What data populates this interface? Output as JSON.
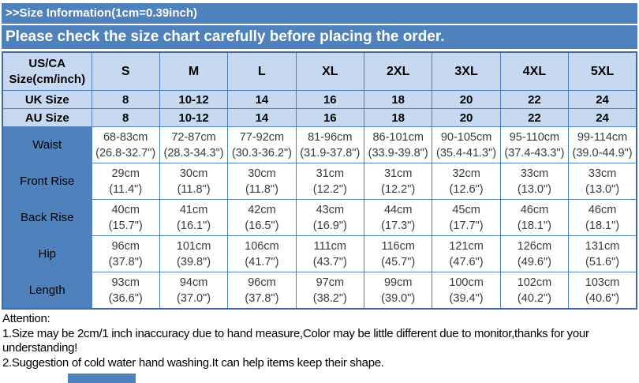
{
  "header": {
    "title": ">>Size Information(1cm=0.39inch)",
    "notice": "Please check the size chart carefully before placing the order."
  },
  "colors": {
    "banner_blue": "#4f81bd",
    "header_light_blue": "#c6d9f1",
    "border_blue": "#4f81bd",
    "cell_text": "#3a3a3a"
  },
  "table": {
    "corner": {
      "line1": "US/CA",
      "line2": "Size(cm/inch)"
    },
    "sizes": [
      "S",
      "M",
      "L",
      "XL",
      "2XL",
      "3XL",
      "4XL",
      "5XL"
    ],
    "size_rows": [
      {
        "label": "UK Size",
        "values": [
          "8",
          "10-12",
          "14",
          "16",
          "18",
          "20",
          "22",
          "24"
        ]
      },
      {
        "label": "AU Size",
        "values": [
          "8",
          "10-12",
          "14",
          "16",
          "18",
          "20",
          "22",
          "24"
        ]
      }
    ],
    "measure_rows": [
      {
        "label": "Waist",
        "cm": [
          "68-83cm",
          "72-87cm",
          "77-92cm",
          "81-96cm",
          "86-101cm",
          "90-105cm",
          "95-110cm",
          "99-114cm"
        ],
        "in": [
          "(26.8-32.7\")",
          "(28.3-34.3\")",
          "(30.3-36.2\")",
          "(31.9-37.8\")",
          "(33.9-39.8\")",
          "(35.4-41.3\")",
          "(37.4-43.3\")",
          "(39.0-44.9\")"
        ]
      },
      {
        "label": "Front Rise",
        "cm": [
          "29cm",
          "30cm",
          "30cm",
          "31cm",
          "31cm",
          "32cm",
          "33cm",
          "33cm"
        ],
        "in": [
          "(11.4\")",
          "(11.8\")",
          "(11.8\")",
          "(12.2\")",
          "(12.2\")",
          "(12.6\")",
          "(13.0\")",
          "(13.0\")"
        ]
      },
      {
        "label": "Back Rise",
        "cm": [
          "40cm",
          "41cm",
          "42cm",
          "43cm",
          "44cm",
          "45cm",
          "46cm",
          "46cm"
        ],
        "in": [
          "(15.7\")",
          "(16.1\")",
          "(16.5\")",
          "(16.9\")",
          "(17.3\")",
          "(17.7\")",
          "(18.1\")",
          "(18.1\")"
        ]
      },
      {
        "label": "Hip",
        "cm": [
          "96cm",
          "101cm",
          "106cm",
          "111cm",
          "116cm",
          "121cm",
          "126cm",
          "131cm"
        ],
        "in": [
          "(37.8\")",
          "(39.8\")",
          "(41.7\")",
          "(43.7\")",
          "(45.7\")",
          "(47.6\")",
          "(49.6\")",
          "(51.6\")"
        ]
      },
      {
        "label": "Length",
        "cm": [
          "93cm",
          "94cm",
          "96cm",
          "97cm",
          "99cm",
          "100cm",
          "102cm",
          "103cm"
        ],
        "in": [
          "(36.6\")",
          "(37.0\")",
          "(37.8\")",
          "(38.2\")",
          "(39.0\")",
          "(39.4\")",
          "(40.2\")",
          "(40.6\")"
        ]
      }
    ]
  },
  "attention": {
    "title": "Attention:",
    "line1": "1.Size may be 2cm/1 inch inaccuracy due to hand measure,Color may be little different due to monitor,thanks for your understanding!",
    "line2": "2.Suggestion of cold water hand washing.It can help items keep their shape."
  }
}
